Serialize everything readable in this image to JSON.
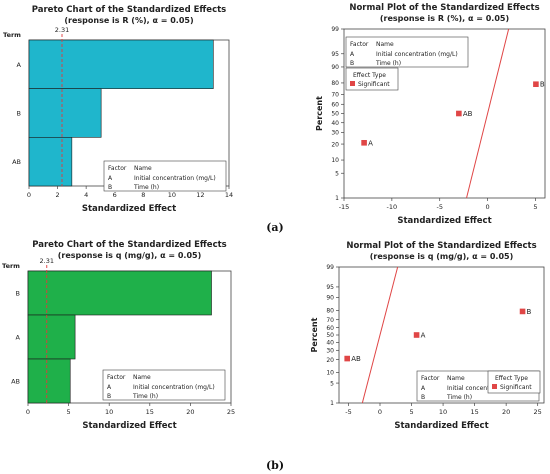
{
  "chart_data": [
    {
      "type": "bar",
      "orientation": "horizontal",
      "title": "Pareto Chart of the Standardized Effects",
      "subtitle": "(response is R (%), α = 0.05)",
      "term_label": "Term",
      "xlabel": "Standardized Effect",
      "xlim": [
        0,
        14
      ],
      "xticks": [
        "0",
        "2",
        "4",
        "6",
        "8",
        "10",
        "12",
        "14"
      ],
      "categories": [
        "A",
        "B",
        "AB"
      ],
      "values": [
        12.9,
        5.05,
        3.0
      ],
      "reference_value": 2.31,
      "reference_label": "2.31",
      "bar_color": "#1fb6cc",
      "legend_header": [
        "Factor",
        "Name"
      ],
      "legend_rows": [
        [
          "A",
          "Initial concentration (mg/L)"
        ],
        [
          "B",
          "Time (h)"
        ]
      ]
    },
    {
      "type": "scatter",
      "title": "Normal Plot of the Standardized Effects",
      "subtitle": "(response is R (%), α = 0.05)",
      "xlabel": "Standardized Effect",
      "ylabel": "Percent",
      "xlim": [
        -15,
        6
      ],
      "xticks": [
        "-15",
        "-10",
        "-5",
        "0",
        "5"
      ],
      "yticks": [
        "1",
        "5",
        "10",
        "20",
        "30",
        "40",
        "50",
        "60",
        "70",
        "80",
        "90",
        "95",
        "99"
      ],
      "points": [
        {
          "label": "A",
          "x": -12.9,
          "y": 21
        },
        {
          "label": "AB",
          "x": -3.0,
          "y": 50
        },
        {
          "label": "B",
          "x": 5.05,
          "y": 79
        }
      ],
      "fit_line": {
        "y1_x": -2.2,
        "y99_x": 2.2
      },
      "point_color": "#e04646",
      "line_color": "#e04646",
      "legend_header": [
        "Factor",
        "Name"
      ],
      "legend_rows": [
        [
          "A",
          "Initial concentration (mg/L)"
        ],
        [
          "B",
          "Time (h)"
        ]
      ],
      "effect_type_title": "Effect Type",
      "effect_type_item": "Significant"
    },
    {
      "type": "bar",
      "orientation": "horizontal",
      "title": "Pareto Chart of the Standardized Effects",
      "subtitle": "(response is q (mg/g), α = 0.05)",
      "term_label": "Term",
      "xlabel": "Standardized Effect",
      "xlim": [
        0,
        25
      ],
      "xticks": [
        "0",
        "5",
        "10",
        "15",
        "20",
        "25"
      ],
      "categories": [
        "B",
        "A",
        "AB"
      ],
      "values": [
        22.6,
        5.8,
        5.2
      ],
      "reference_value": 2.31,
      "reference_label": "2.31",
      "bar_color": "#1fb04a",
      "legend_header": [
        "Factor",
        "Name"
      ],
      "legend_rows": [
        [
          "A",
          "Initial concentration (mg/L)"
        ],
        [
          "B",
          "Time (h)"
        ]
      ]
    },
    {
      "type": "scatter",
      "title": "Normal Plot of the Standardized Effects",
      "subtitle": "(response is q (mg/g), α = 0.05)",
      "xlabel": "Standardized Effect",
      "ylabel": "Percent",
      "xlim": [
        -6.5,
        26
      ],
      "xticks": [
        "-5",
        "0",
        "5",
        "10",
        "15",
        "20",
        "25"
      ],
      "yticks": [
        "1",
        "5",
        "10",
        "20",
        "30",
        "40",
        "50",
        "60",
        "70",
        "80",
        "90",
        "95",
        "99"
      ],
      "points": [
        {
          "label": "AB",
          "x": -5.2,
          "y": 21
        },
        {
          "label": "A",
          "x": 5.8,
          "y": 50
        },
        {
          "label": "B",
          "x": 22.6,
          "y": 79
        }
      ],
      "fit_line": {
        "y1_x": -2.8,
        "y99_x": 2.8
      },
      "point_color": "#e04646",
      "line_color": "#e04646",
      "legend_header": [
        "Factor",
        "Name"
      ],
      "legend_rows": [
        [
          "A",
          "Initial concentration (mg/L)"
        ],
        [
          "B",
          "Time (h)"
        ]
      ],
      "effect_type_title": "Effect Type",
      "effect_type_item": "Significant"
    }
  ],
  "captions": [
    "(a)",
    "(b)"
  ]
}
